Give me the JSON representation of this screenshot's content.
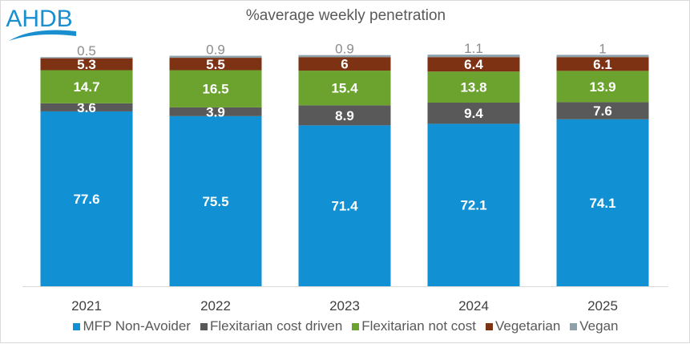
{
  "logo_text": "AHDB",
  "chart_data": {
    "type": "bar",
    "stacked": true,
    "title": "%average weekly penetration",
    "xlabel": "",
    "ylabel": "",
    "categories": [
      "2021",
      "2022",
      "2023",
      "2024",
      "2025"
    ],
    "ylim": [
      0,
      105
    ],
    "grid": false,
    "legend_position": "bottom",
    "series": [
      {
        "name": "MFP Non-Avoider",
        "color": "#1191d4",
        "label_color": "#ffffff",
        "values": [
          77.6,
          75.5,
          71.4,
          72.1,
          74.1
        ]
      },
      {
        "name": "Flexitarian cost driven",
        "color": "#595959",
        "label_color": "#ffffff",
        "values": [
          3.6,
          3.9,
          8.9,
          9.4,
          7.6
        ]
      },
      {
        "name": "Flexitarian not cost",
        "color": "#6ba32e",
        "label_color": "#ffffff",
        "values": [
          14.7,
          16.5,
          15.4,
          13.8,
          13.9
        ]
      },
      {
        "name": "Vegetarian",
        "color": "#7e3214",
        "label_color": "#ffffff",
        "values": [
          5.3,
          5.5,
          6,
          6.4,
          6.1
        ]
      },
      {
        "name": "Vegan",
        "color": "#8ea2ac",
        "label_color": "#8c8c8c",
        "values": [
          0.5,
          0.9,
          0.9,
          1.1,
          1
        ]
      }
    ]
  }
}
